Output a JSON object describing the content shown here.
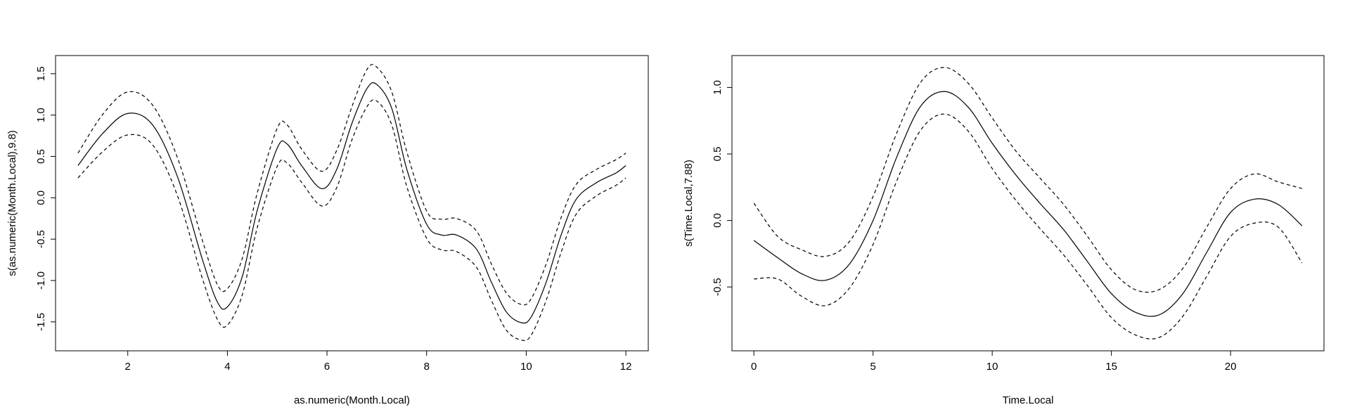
{
  "chart_data": [
    {
      "type": "line",
      "title": "",
      "xlabel": "as.numeric(Month.Local)",
      "ylabel": "s(as.numeric(Month.Local),9.8)",
      "xlim": [
        0.55,
        12.45
      ],
      "ylim": [
        -1.85,
        1.72
      ],
      "xticks": [
        2,
        4,
        6,
        8,
        10,
        12
      ],
      "xtick_labels": [
        "2",
        "4",
        "6",
        "8",
        "10",
        "12"
      ],
      "yticks": [
        -1.5,
        -1.0,
        -0.5,
        0.0,
        0.5,
        1.0,
        1.5
      ],
      "ytick_labels": [
        "-1.5",
        "-1.0",
        "-0.5",
        "0.0",
        "0.5",
        "1.0",
        "1.5"
      ],
      "grid": false,
      "x": [
        1.0,
        1.5,
        2.0,
        2.5,
        3.0,
        3.5,
        3.8,
        4.0,
        4.3,
        4.6,
        5.0,
        5.2,
        5.5,
        5.9,
        6.2,
        6.5,
        6.8,
        7.0,
        7.3,
        7.6,
        8.0,
        8.3,
        8.6,
        9.0,
        9.3,
        9.6,
        9.9,
        10.1,
        10.4,
        10.7,
        11.0,
        11.4,
        11.8,
        12.0
      ],
      "series": [
        {
          "style": "solid",
          "values": [
            0.39,
            0.78,
            1.02,
            0.88,
            0.25,
            -0.75,
            -1.26,
            -1.32,
            -0.95,
            -0.15,
            0.6,
            0.65,
            0.38,
            0.11,
            0.35,
            0.9,
            1.32,
            1.37,
            1.08,
            0.35,
            -0.32,
            -0.45,
            -0.45,
            -0.62,
            -1.02,
            -1.38,
            -1.51,
            -1.44,
            -1.02,
            -0.45,
            -0.02,
            0.18,
            0.3,
            0.39
          ]
        },
        {
          "style": "dashed",
          "values": [
            0.54,
            1.01,
            1.28,
            1.12,
            0.48,
            -0.52,
            -1.05,
            -1.1,
            -0.73,
            0.06,
            0.84,
            0.88,
            0.58,
            0.32,
            0.58,
            1.1,
            1.55,
            1.58,
            1.28,
            0.56,
            -0.16,
            -0.26,
            -0.25,
            -0.4,
            -0.8,
            -1.15,
            -1.29,
            -1.22,
            -0.8,
            -0.24,
            0.16,
            0.34,
            0.46,
            0.54
          ]
        },
        {
          "style": "dashed",
          "values": [
            0.24,
            0.56,
            0.76,
            0.64,
            0.02,
            -0.98,
            -1.47,
            -1.54,
            -1.17,
            -0.36,
            0.38,
            0.42,
            0.18,
            -0.1,
            0.13,
            0.7,
            1.1,
            1.17,
            0.88,
            0.14,
            -0.49,
            -0.63,
            -0.65,
            -0.84,
            -1.24,
            -1.6,
            -1.72,
            -1.66,
            -1.24,
            -0.66,
            -0.2,
            0.02,
            0.15,
            0.24
          ]
        }
      ]
    },
    {
      "type": "line",
      "title": "",
      "xlabel": "Time.Local",
      "ylabel": "s(Time.Local,7.88)",
      "xlim": [
        -0.92,
        23.92
      ],
      "ylim": [
        -0.98,
        1.24
      ],
      "xticks": [
        0,
        5,
        10,
        15,
        20
      ],
      "xtick_labels": [
        "0",
        "5",
        "10",
        "15",
        "20"
      ],
      "yticks": [
        -0.5,
        0.0,
        0.5,
        1.0
      ],
      "ytick_labels": [
        "-0.5",
        "0.0",
        "0.5",
        "1.0"
      ],
      "grid": false,
      "x": [
        0,
        1,
        2,
        3,
        4,
        5,
        6,
        7,
        8,
        9,
        10,
        11,
        12,
        13,
        14,
        15,
        16,
        17,
        18,
        19,
        20,
        21,
        22,
        23
      ],
      "series": [
        {
          "style": "solid",
          "values": [
            -0.15,
            -0.28,
            -0.4,
            -0.45,
            -0.33,
            0.0,
            0.48,
            0.86,
            0.97,
            0.85,
            0.58,
            0.34,
            0.13,
            -0.07,
            -0.31,
            -0.55,
            -0.69,
            -0.71,
            -0.55,
            -0.24,
            0.06,
            0.16,
            0.12,
            -0.04
          ]
        },
        {
          "style": "dashed",
          "values": [
            0.13,
            -0.12,
            -0.22,
            -0.27,
            -0.16,
            0.18,
            0.66,
            1.04,
            1.15,
            1.03,
            0.77,
            0.52,
            0.32,
            0.12,
            -0.12,
            -0.37,
            -0.52,
            -0.52,
            -0.36,
            -0.05,
            0.24,
            0.35,
            0.29,
            0.24
          ]
        },
        {
          "style": "dashed",
          "values": [
            -0.44,
            -0.44,
            -0.57,
            -0.64,
            -0.51,
            -0.18,
            0.3,
            0.68,
            0.8,
            0.67,
            0.39,
            0.15,
            -0.06,
            -0.26,
            -0.49,
            -0.73,
            -0.86,
            -0.88,
            -0.72,
            -0.42,
            -0.12,
            -0.02,
            -0.05,
            -0.32
          ]
        }
      ]
    }
  ]
}
